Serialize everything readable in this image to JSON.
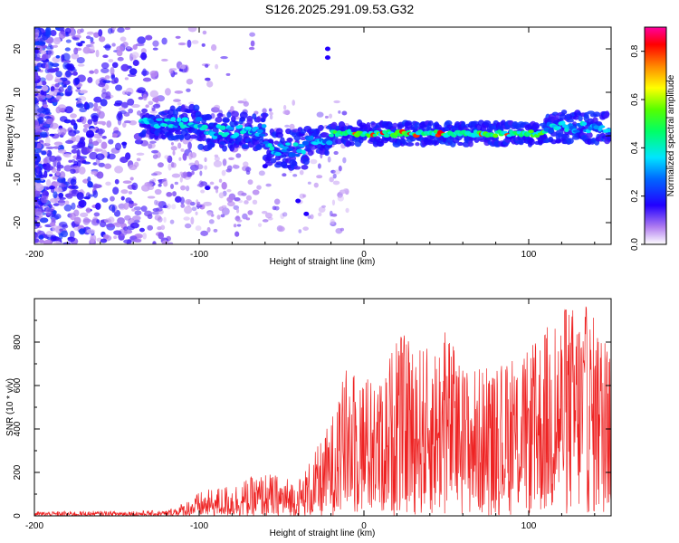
{
  "title": "S126.2025.291.09.53.G32",
  "chart_data": [
    {
      "type": "heatmap",
      "xlabel": "Height of straight line (km)",
      "ylabel": "Frequency (Hz)",
      "xlim": [
        -200,
        150
      ],
      "ylim": [
        -25,
        25
      ],
      "x_ticks": [
        -200,
        -100,
        0,
        100
      ],
      "y_ticks": [
        -20,
        -10,
        0,
        10,
        20
      ],
      "x_tick_labels": [
        "-200",
        "-100",
        "0",
        "100"
      ],
      "y_tick_labels": [
        "-20",
        "-10",
        "0",
        "10",
        "20"
      ],
      "colorbar": {
        "label": "Normalized spectral amplitude",
        "range": [
          0.0,
          0.9
        ],
        "ticks": [
          0.0,
          0.2,
          0.4,
          0.6,
          0.8
        ],
        "tick_labels": [
          "0.0",
          "0.2",
          "0.4",
          "0.6",
          "0.8"
        ]
      },
      "ridge": {
        "description_free_band_center_hz": 0,
        "segments": [
          {
            "x_from": -135,
            "x_to": -100,
            "center_hz": 3,
            "halfwidth_hz": 2
          },
          {
            "x_from": -100,
            "x_to": -60,
            "center_hz": 1,
            "halfwidth_hz": 2.5
          },
          {
            "x_from": -60,
            "x_to": -35,
            "center_hz": -3,
            "halfwidth_hz": 3
          },
          {
            "x_from": -35,
            "x_to": -20,
            "center_hz": -1,
            "halfwidth_hz": 1.5
          },
          {
            "x_from": -20,
            "x_to": 110,
            "center_hz": 0.5,
            "halfwidth_hz": 1
          },
          {
            "x_from": 110,
            "x_to": 150,
            "center_hz": 2,
            "halfwidth_hz": 2
          }
        ]
      }
    },
    {
      "type": "line",
      "xlabel": "Height of straight line (km)",
      "ylabel": "SNR (10 * v/v)",
      "xlim": [
        -200,
        150
      ],
      "ylim": [
        0,
        1000
      ],
      "x_ticks": [
        -200,
        -100,
        0,
        100
      ],
      "y_ticks": [
        0,
        200,
        400,
        600,
        800
      ],
      "x_tick_labels": [
        "-200",
        "-100",
        "0",
        "100"
      ],
      "y_tick_labels": [
        "0",
        "200",
        "400",
        "600",
        "800"
      ],
      "color": "#ee2222",
      "envelope": [
        {
          "x": -200,
          "y_max": 20
        },
        {
          "x": -120,
          "y_max": 25
        },
        {
          "x": -110,
          "y_max": 60
        },
        {
          "x": -100,
          "y_max": 110
        },
        {
          "x": -80,
          "y_max": 150
        },
        {
          "x": -60,
          "y_max": 200
        },
        {
          "x": -40,
          "y_max": 170
        },
        {
          "x": -28,
          "y_max": 320
        },
        {
          "x": -20,
          "y_max": 450
        },
        {
          "x": -10,
          "y_max": 700
        },
        {
          "x": 10,
          "y_max": 620
        },
        {
          "x": 20,
          "y_max": 850
        },
        {
          "x": 40,
          "y_max": 770
        },
        {
          "x": 50,
          "y_max": 870
        },
        {
          "x": 60,
          "y_max": 700
        },
        {
          "x": 80,
          "y_max": 680
        },
        {
          "x": 100,
          "y_max": 760
        },
        {
          "x": 110,
          "y_max": 880
        },
        {
          "x": 125,
          "y_max": 980
        },
        {
          "x": 135,
          "y_max": 980
        },
        {
          "x": 150,
          "y_max": 800
        }
      ]
    }
  ]
}
